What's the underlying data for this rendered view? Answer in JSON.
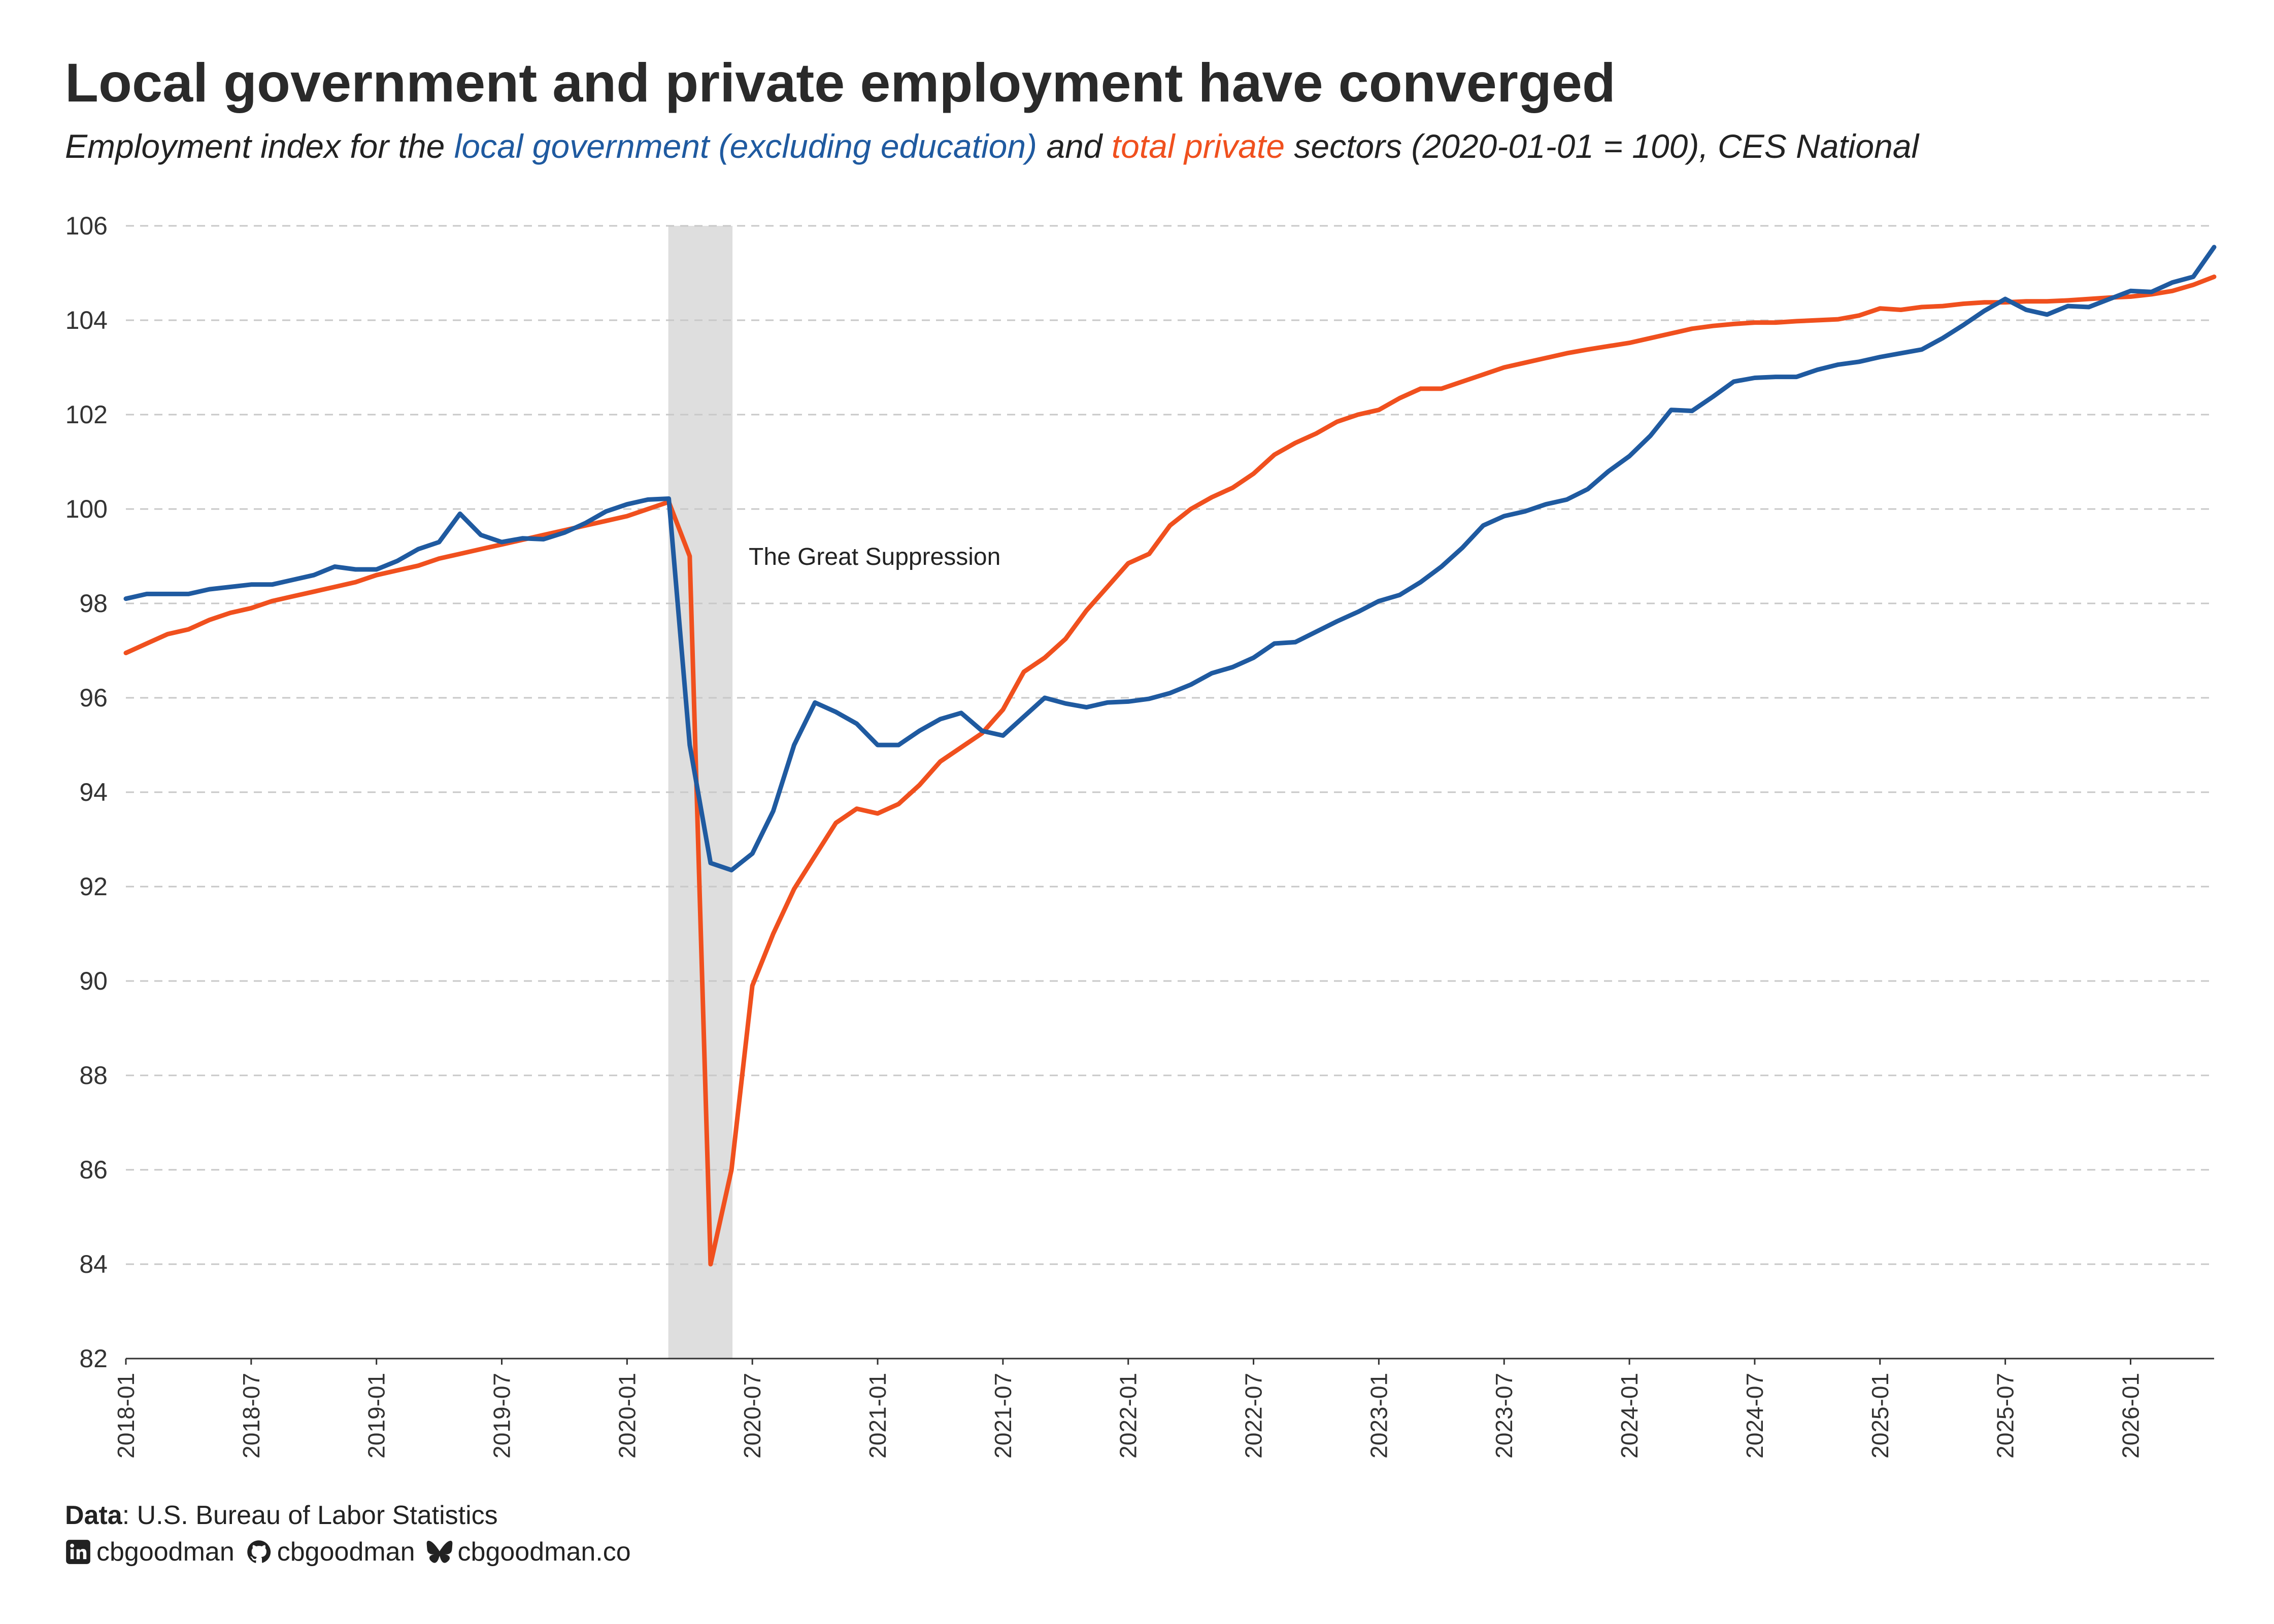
{
  "title": "Local government and private employment have converged",
  "subtitle": {
    "prefix": "Employment index for the ",
    "series1": "local government (excluding education)",
    "middle": " and ",
    "series2": "total private",
    "suffix": " sectors (2020-01-01 = 100), CES National"
  },
  "colors": {
    "local_gov": "#1f5aa0",
    "private": "#f0501e",
    "shade": "#dedede",
    "grid": "#c8c8c8"
  },
  "chart_data": {
    "type": "line",
    "x_start": "2018-01",
    "x_step": "1 month",
    "xlim": [
      "2018-01",
      "2026-05"
    ],
    "ylim": [
      82,
      106
    ],
    "yticks": [
      "82",
      "84",
      "86",
      "88",
      "90",
      "92",
      "94",
      "96",
      "98",
      "100",
      "102",
      "104",
      "106"
    ],
    "xticks": [
      "2018-01",
      "2018-07",
      "2019-01",
      "2019-07",
      "2020-01",
      "2020-07",
      "2021-01",
      "2021-07",
      "2022-01",
      "2022-07",
      "2023-01",
      "2023-07",
      "2024-01",
      "2024-07",
      "2025-01",
      "2025-07",
      "2026-01"
    ],
    "grid": "horizontal dashed",
    "shaded_region": {
      "from": "2020-03",
      "to": "2020-06",
      "label": "The Great Suppression"
    },
    "series": [
      {
        "name": "local government (excluding education)",
        "color": "#1f5aa0",
        "values": [
          98.1,
          98.2,
          98.2,
          98.2,
          98.3,
          98.35,
          98.4,
          98.4,
          98.5,
          98.6,
          98.78,
          98.72,
          98.72,
          98.9,
          99.15,
          99.3,
          99.9,
          99.45,
          99.3,
          99.38,
          99.36,
          99.5,
          99.7,
          99.95,
          100.1,
          100.2,
          100.22,
          95.0,
          92.5,
          92.35,
          92.7,
          93.6,
          95.0,
          95.9,
          95.7,
          95.45,
          95.0,
          95.0,
          95.3,
          95.55,
          95.68,
          95.3,
          95.2,
          95.6,
          96.0,
          95.88,
          95.8,
          95.9,
          95.92,
          95.98,
          96.1,
          96.28,
          96.52,
          96.65,
          96.85,
          97.15,
          97.18,
          97.4,
          97.62,
          97.82,
          98.05,
          98.18,
          98.45,
          98.78,
          99.18,
          99.65,
          99.85,
          99.95,
          100.1,
          100.2,
          100.42,
          100.8,
          101.12,
          101.55,
          102.1,
          102.08,
          102.38,
          102.7,
          102.78,
          102.8,
          102.8,
          102.95,
          103.06,
          103.12,
          103.22,
          103.3,
          103.38,
          103.62,
          103.9,
          104.2,
          104.45,
          104.22,
          104.12,
          104.3,
          104.28,
          104.45,
          104.62,
          104.6,
          104.8,
          104.92,
          105.55
        ]
      },
      {
        "name": "total private",
        "color": "#f0501e",
        "values": [
          96.95,
          97.15,
          97.35,
          97.45,
          97.65,
          97.8,
          97.9,
          98.05,
          98.15,
          98.25,
          98.35,
          98.45,
          98.6,
          98.7,
          98.8,
          98.95,
          99.05,
          99.15,
          99.25,
          99.35,
          99.45,
          99.55,
          99.65,
          99.75,
          99.85,
          100.0,
          100.15,
          99.0,
          84.0,
          86.0,
          89.9,
          91.0,
          91.95,
          92.65,
          93.35,
          93.65,
          93.55,
          93.75,
          94.15,
          94.65,
          94.95,
          95.25,
          95.75,
          96.55,
          96.85,
          97.25,
          97.85,
          98.35,
          98.85,
          99.05,
          99.65,
          100.0,
          100.25,
          100.45,
          100.75,
          101.15,
          101.4,
          101.6,
          101.85,
          102.0,
          102.1,
          102.35,
          102.55,
          102.55,
          102.7,
          102.85,
          103.0,
          103.1,
          103.2,
          103.3,
          103.38,
          103.45,
          103.52,
          103.62,
          103.72,
          103.82,
          103.88,
          103.92,
          103.95,
          103.95,
          103.98,
          104.0,
          104.02,
          104.1,
          104.25,
          104.22,
          104.28,
          104.3,
          104.35,
          104.38,
          104.38,
          104.4,
          104.4,
          104.42,
          104.45,
          104.48,
          104.5,
          104.55,
          104.62,
          104.75,
          104.92
        ]
      }
    ]
  },
  "footer": {
    "data_label": "Data",
    "data_source": ": U.S. Bureau of Labor Statistics",
    "handles": [
      {
        "icon": "linkedin-icon",
        "text": "cbgoodman"
      },
      {
        "icon": "github-icon",
        "text": "cbgoodman"
      },
      {
        "icon": "bluesky-icon",
        "text": "cbgoodman.co"
      }
    ]
  }
}
